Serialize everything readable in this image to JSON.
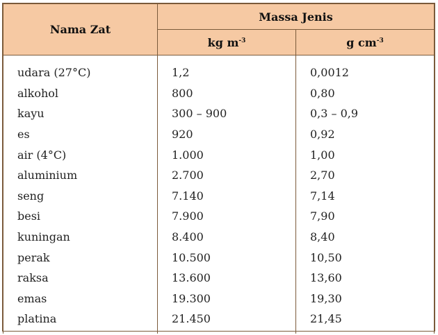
{
  "header": {
    "name_col": "Nama Zat",
    "group": "Massa Jenis",
    "unit_kg": "kg m",
    "unit_kg_sup": "-3",
    "unit_g": "g cm",
    "unit_g_sup": "-3"
  },
  "rows": [
    {
      "zat": "udara (27°C)",
      "kg": "1,2",
      "g": "0,0012"
    },
    {
      "zat": "alkohol",
      "kg": "800",
      "g": "0,80"
    },
    {
      "zat": "kayu",
      "kg": "300 – 900",
      "g": "0,3 – 0,9"
    },
    {
      "zat": "es",
      "kg": "920",
      "g": "0,92"
    },
    {
      "zat": "air (4°C)",
      "kg": "1.000",
      "g": "1,00"
    },
    {
      "zat": "aluminium",
      "kg": "2.700",
      "g": "2,70"
    },
    {
      "zat": "seng",
      "kg": "7.140",
      "g": "7,14"
    },
    {
      "zat": "besi",
      "kg": "7.900",
      "g": "7,90"
    },
    {
      "zat": "kuningan",
      "kg": "8.400",
      "g": "8,40"
    },
    {
      "zat": "perak",
      "kg": "10.500",
      "g": "10,50"
    },
    {
      "zat": "raksa",
      "kg": "13.600",
      "g": "13,60"
    },
    {
      "zat": "emas",
      "kg": "19.300",
      "g": "19,30"
    },
    {
      "zat": "platina",
      "kg": "21.450",
      "g": "21,45"
    }
  ]
}
